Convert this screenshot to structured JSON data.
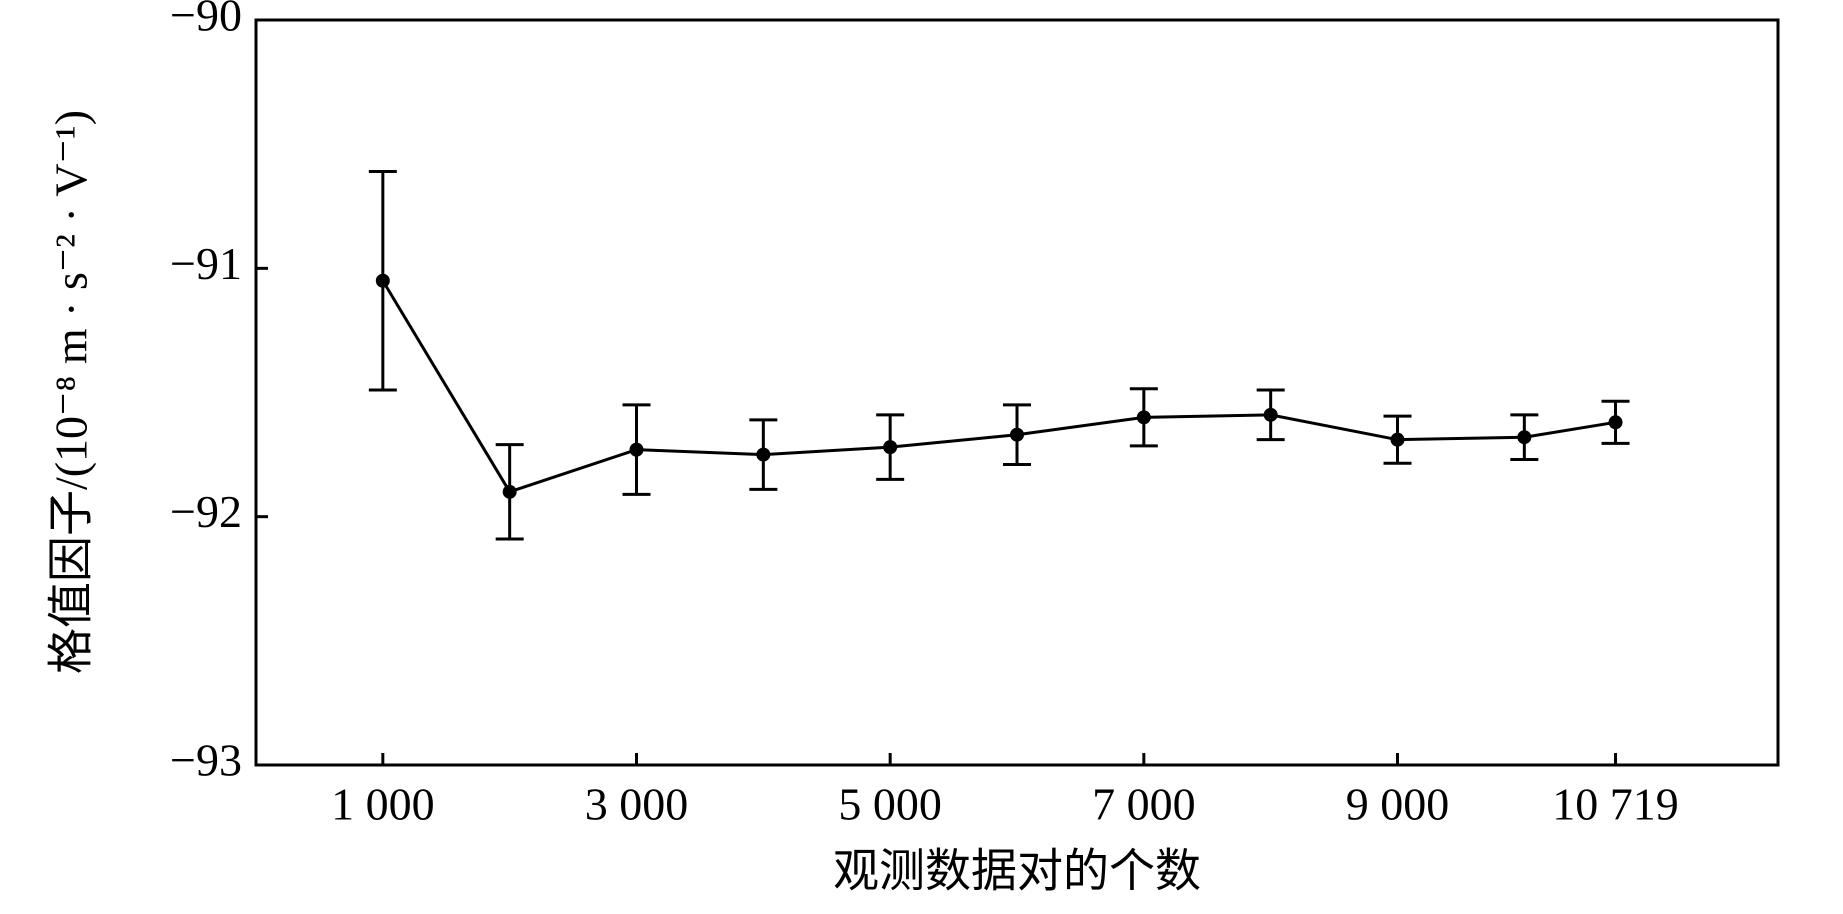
{
  "chart_data": {
    "type": "line",
    "x_label": "观测数据对的个数",
    "y_label": "格值因子/(10⁻⁸ m · s⁻² · V⁻¹)",
    "x": [
      1000,
      2000,
      3000,
      4000,
      5000,
      6000,
      7000,
      8000,
      9000,
      10000,
      10719
    ],
    "values": [
      -91.05,
      -91.9,
      -91.73,
      -91.75,
      -91.72,
      -91.67,
      -91.6,
      -91.59,
      -91.69,
      -91.68,
      -91.62
    ],
    "errors": [
      0.44,
      0.19,
      0.18,
      0.14,
      0.13,
      0.12,
      0.115,
      0.1,
      0.095,
      0.09,
      0.085
    ],
    "color": "#000000",
    "xlim": [
      0,
      12000
    ],
    "ylim": [
      -93,
      -90
    ],
    "xticks": [
      {
        "value": 1000,
        "label": "1 000"
      },
      {
        "value": 3000,
        "label": "3 000"
      },
      {
        "value": 5000,
        "label": "5 000"
      },
      {
        "value": 7000,
        "label": "7 000"
      },
      {
        "value": 9000,
        "label": "9 000"
      },
      {
        "value": 10719,
        "label": "10 719"
      }
    ],
    "yticks": [
      {
        "value": -93,
        "label": "−93"
      },
      {
        "value": -92,
        "label": "−92"
      },
      {
        "value": -91,
        "label": "−91"
      },
      {
        "value": -90,
        "label": "−90"
      }
    ],
    "grid": false
  }
}
